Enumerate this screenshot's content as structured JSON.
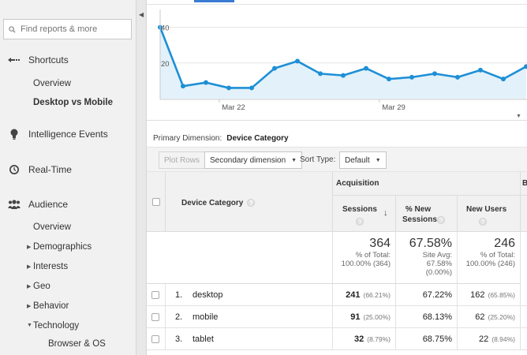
{
  "sidebar": {
    "search_placeholder": "Find reports & more",
    "shortcuts": {
      "label": "Shortcuts",
      "items": [
        "Overview",
        "Desktop vs Mobile"
      ]
    },
    "intelligence": {
      "label": "Intelligence Events"
    },
    "realtime": {
      "label": "Real-Time"
    },
    "audience": {
      "label": "Audience",
      "items": [
        "Overview",
        "Demographics",
        "Interests",
        "Geo",
        "Behavior",
        "Technology",
        "Browser & OS"
      ]
    }
  },
  "chart_data": {
    "type": "area",
    "ytick_labels": [
      "40",
      "20"
    ],
    "xtick_labels": [
      "Mar 22",
      "Mar 29"
    ],
    "ylim": [
      0,
      50
    ],
    "values": [
      40,
      7,
      9,
      6,
      6,
      17,
      21,
      14,
      13,
      17,
      11,
      12,
      14,
      12,
      16,
      11,
      18
    ],
    "line_color": "#1e8fd6",
    "fill_color": "#e3f1fa"
  },
  "dimension": {
    "label": "Primary Dimension:",
    "value": "Device Category"
  },
  "controls": {
    "plot_rows": "Plot Rows",
    "secondary": "Secondary dimension",
    "sort_type_label": "Sort Type:",
    "sort_type_value": "Default"
  },
  "table": {
    "dimension_header": "Device Category",
    "group_header": "Acquisition",
    "group_header_cut": "B",
    "columns": [
      {
        "name": "Sessions",
        "sort_icon": "arrow-down-icon"
      },
      {
        "name": "% New Sessions"
      },
      {
        "name": "New Users"
      }
    ],
    "totals": [
      {
        "value": "364",
        "line1": "% of Total:",
        "line2": "100.00% (364)",
        "line3": ""
      },
      {
        "value": "67.58%",
        "line1": "Site Avg:",
        "line2": "67.58%",
        "line3": "(0.00%)"
      },
      {
        "value": "246",
        "line1": "% of Total:",
        "line2": "100.00% (246)",
        "line3": ""
      }
    ],
    "rows": [
      {
        "index": "1.",
        "device": "desktop",
        "sessions": "241",
        "sessions_pct": "(66.21%)",
        "new_sessions": "67.22%",
        "new_users": "162",
        "new_users_pct": "(65.85%)"
      },
      {
        "index": "2.",
        "device": "mobile",
        "sessions": "91",
        "sessions_pct": "(25.00%)",
        "new_sessions": "68.13%",
        "new_users": "62",
        "new_users_pct": "(25.20%)"
      },
      {
        "index": "3.",
        "device": "tablet",
        "sessions": "32",
        "sessions_pct": "(8.79%)",
        "new_sessions": "68.75%",
        "new_users": "22",
        "new_users_pct": "(8.94%)"
      }
    ]
  }
}
